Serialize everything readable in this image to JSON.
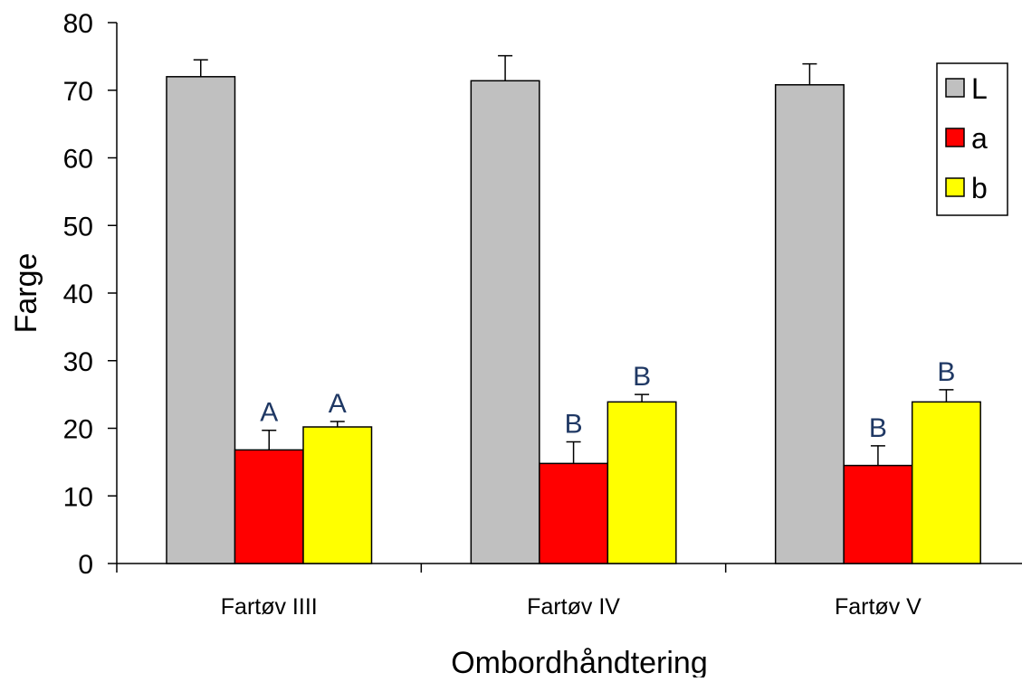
{
  "chart_data": {
    "type": "bar",
    "title": "",
    "xlabel": "Ombordhåndtering",
    "ylabel": "Farge",
    "ylim": [
      0,
      80
    ],
    "yticks": [
      0,
      10,
      20,
      30,
      40,
      50,
      60,
      70,
      80
    ],
    "categories": [
      "Fartøv IIII",
      "Fartøv IV",
      "Fartøv V"
    ],
    "series": [
      {
        "name": "L",
        "color": "#c0c0c0",
        "values": [
          72.0,
          71.4,
          70.8
        ],
        "errors": [
          2.5,
          3.7,
          3.1
        ],
        "annotations": [
          "",
          "",
          ""
        ],
        "annotation_color": "#1f3864"
      },
      {
        "name": "a",
        "color": "#ff0000",
        "values": [
          16.8,
          14.8,
          14.5
        ],
        "errors": [
          2.9,
          3.2,
          2.9
        ],
        "annotations": [
          "A",
          "B",
          "B"
        ],
        "annotation_color": "#1f3864"
      },
      {
        "name": "b",
        "color": "#ffff00",
        "values": [
          20.2,
          23.9,
          23.9
        ],
        "errors": [
          0.8,
          1.1,
          1.8
        ],
        "annotations": [
          "A",
          "B",
          "B"
        ],
        "annotation_color": "#1f3864"
      }
    ],
    "legend": {
      "position": "top-right",
      "entries": [
        "L",
        "a",
        "b"
      ]
    },
    "grid": false
  }
}
